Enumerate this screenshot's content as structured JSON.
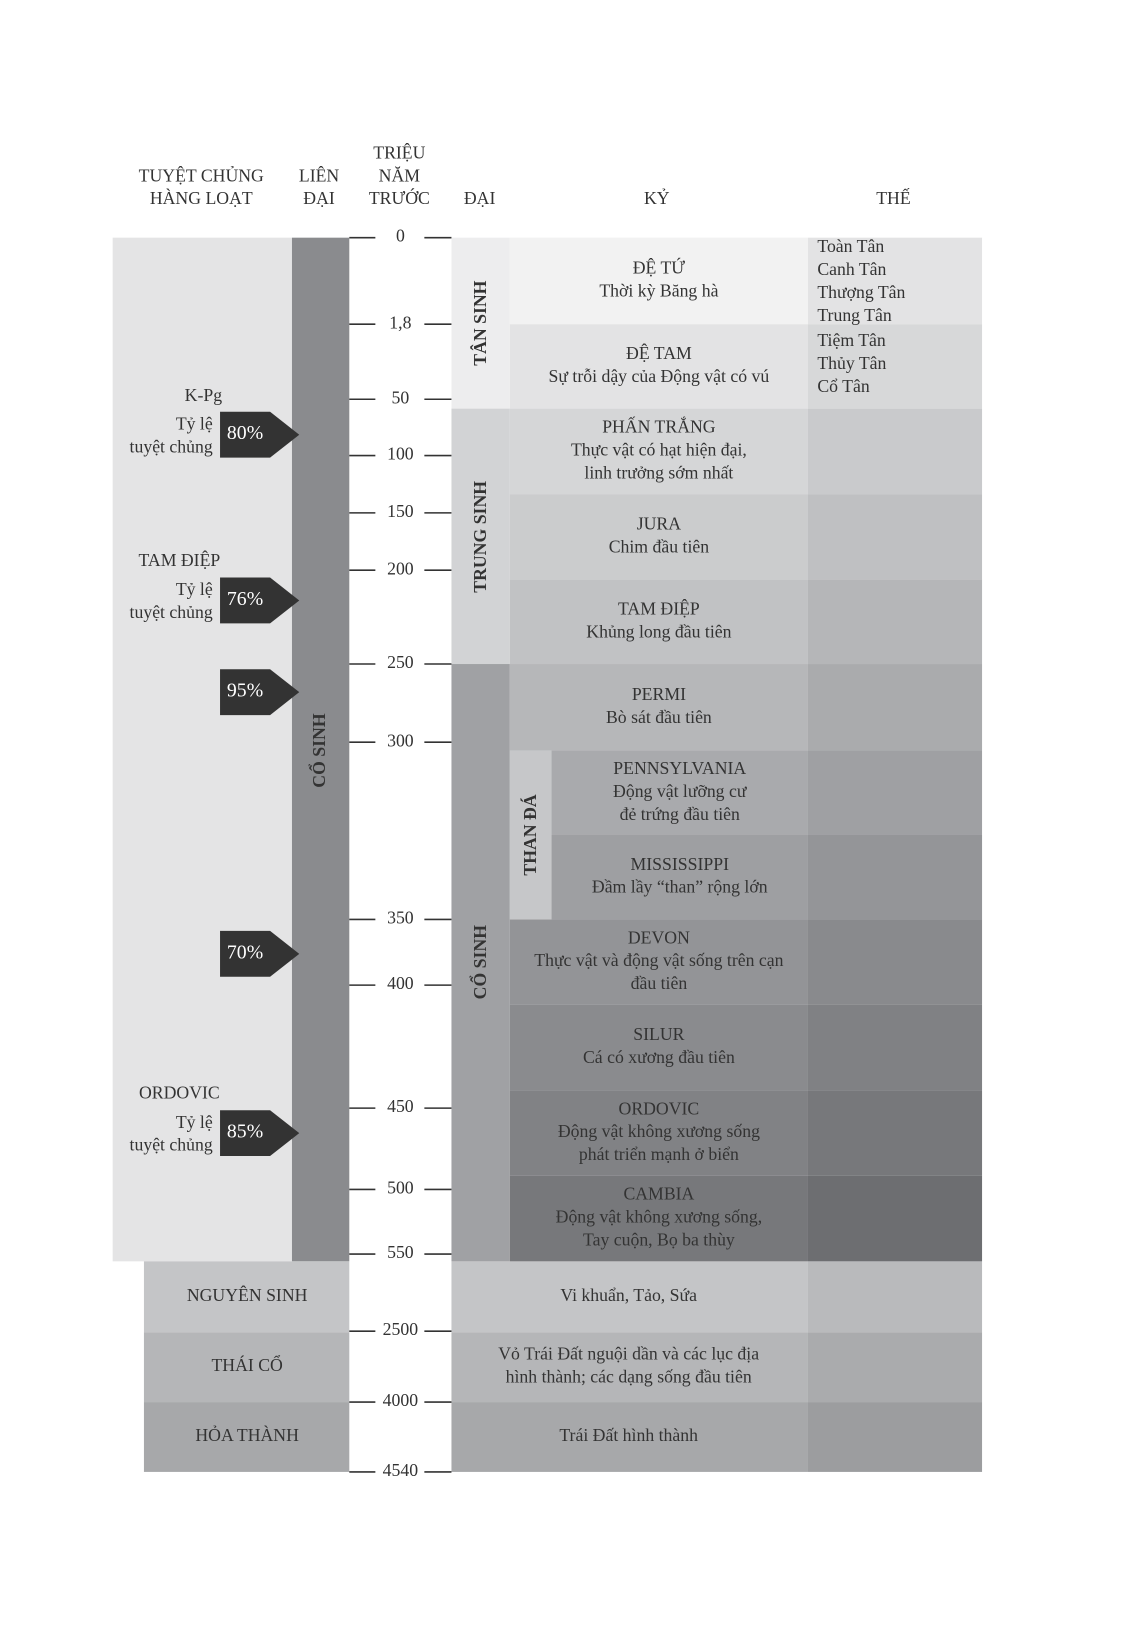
{
  "headers": {
    "mass_extinction": [
      "TUYỆT CHỦNG",
      "HÀNG LOẠT"
    ],
    "eon": [
      "LIÊN",
      "ĐẠI"
    ],
    "mya": [
      "TRIỆU",
      "NĂM",
      "TRƯỚC"
    ],
    "era": [
      "ĐẠI"
    ],
    "period": [
      "KỶ"
    ],
    "epoch": [
      "THẾ"
    ]
  },
  "time_labels": [
    "0",
    "1,8",
    "50",
    "100",
    "150",
    "200",
    "250",
    "300",
    "350",
    "400",
    "450",
    "500",
    "550",
    "2500",
    "4000",
    "4540"
  ],
  "phanerozoic_eon": "CỔ SINH",
  "precambrian_eons": [
    "NGUYÊN SINH",
    "THÁI CỔ",
    "HỎA THÀNH"
  ],
  "eras": [
    "TÂN SINH",
    "TRUNG SINH",
    "CỔ SINH"
  ],
  "carboniferous": "THAN ĐÁ",
  "periods": [
    {
      "name": "ĐỆ TỨ",
      "desc": [
        "Thời kỳ Băng hà"
      ]
    },
    {
      "name": "ĐỆ TAM",
      "desc": [
        "Sự trỗi dậy của Động vật có vú"
      ]
    },
    {
      "name": "PHẤN TRẮNG",
      "desc": [
        "Thực vật có hạt hiện đại,",
        "linh trưởng sớm nhất"
      ]
    },
    {
      "name": "JURA",
      "desc": [
        "Chim đầu tiên"
      ]
    },
    {
      "name": "TAM ĐIỆP",
      "desc": [
        "Khủng long đầu tiên"
      ]
    },
    {
      "name": "PERMI",
      "desc": [
        "Bò sát đầu tiên"
      ]
    },
    {
      "name": "PENNSYLVANIA",
      "desc": [
        "Động vật lưỡng cư",
        "đẻ trứng đầu tiên"
      ]
    },
    {
      "name": "MISSISSIPPI",
      "desc": [
        "Đầm lầy “than” rộng lớn"
      ]
    },
    {
      "name": "DEVON",
      "desc": [
        "Thực vật và động vật sống trên cạn",
        "đầu tiên"
      ]
    },
    {
      "name": "SILUR",
      "desc": [
        "Cá có xương đầu tiên"
      ]
    },
    {
      "name": "ORDOVIC",
      "desc": [
        "Động vật không xương sống",
        "phát triển mạnh ở biển"
      ]
    },
    {
      "name": "CAMBIA",
      "desc": [
        "Động vật không xương sống,",
        "Tay cuộn, Bọ ba thùy"
      ]
    }
  ],
  "precambrian_desc": [
    [
      "Vi khuẩn, Tảo, Sứa"
    ],
    [
      "Vỏ Trái Đất nguội dần và các lục địa",
      "hình thành; các dạng sống đầu tiên"
    ],
    [
      "Trái Đất hình thành"
    ]
  ],
  "epochs": [
    "Toàn Tân",
    "Canh Tân",
    "Thượng Tân",
    "Trung Tân",
    "Tiệm Tân",
    "Thủy Tân",
    "Cổ Tân"
  ],
  "extinctions": [
    {
      "name": "K-Pg",
      "rate": [
        "Tỷ lệ",
        "tuyệt chủng"
      ],
      "percent": "80%"
    },
    {
      "name": "TAM ĐIỆP",
      "rate": [
        "Tỷ lệ",
        "tuyệt chủng"
      ],
      "percent": "76%"
    },
    {
      "percent": "95%"
    },
    {
      "percent": "70%"
    },
    {
      "name": "ORDOVIC",
      "rate": [
        "Tỷ lệ",
        "tuyệt chủng"
      ],
      "percent": "85%"
    }
  ]
}
